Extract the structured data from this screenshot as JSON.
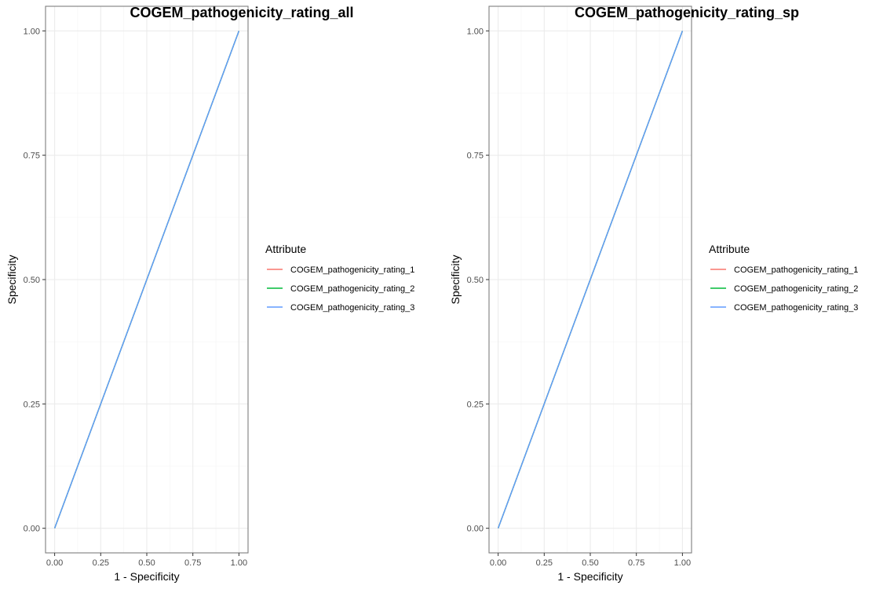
{
  "colors": {
    "series_1": "#F8766D",
    "series_2": "#00BA38",
    "series_3": "#619CFF",
    "grid_major": "#ebebeb",
    "grid_minor": "#f4f4f4",
    "panel_border": "#7f7f7f",
    "tick": "#333333"
  },
  "chart_data": [
    {
      "type": "line",
      "title": "COGEM_pathogenicity_rating_all",
      "xlabel": "1 - Specificity",
      "ylabel": "Specificity",
      "xlim": [
        0,
        1
      ],
      "ylim": [
        0,
        1
      ],
      "xticks": [
        "0.00",
        "0.25",
        "0.50",
        "0.75",
        "1.00"
      ],
      "yticks": [
        "0.00",
        "0.25",
        "0.50",
        "0.75",
        "1.00"
      ],
      "grid": true,
      "legend_title": "Attribute",
      "legend_position": "right",
      "series": [
        {
          "name": "COGEM_pathogenicity_rating_1",
          "x": [
            0,
            1
          ],
          "y": [
            0,
            1
          ]
        },
        {
          "name": "COGEM_pathogenicity_rating_2",
          "x": [
            0,
            1
          ],
          "y": [
            0,
            1
          ]
        },
        {
          "name": "COGEM_pathogenicity_rating_3",
          "x": [
            0,
            1
          ],
          "y": [
            0,
            1
          ]
        }
      ]
    },
    {
      "type": "line",
      "title": "COGEM_pathogenicity_rating_sp",
      "xlabel": "1 - Specificity",
      "ylabel": "Specificity",
      "xlim": [
        0,
        1
      ],
      "ylim": [
        0,
        1
      ],
      "xticks": [
        "0.00",
        "0.25",
        "0.50",
        "0.75",
        "1.00"
      ],
      "yticks": [
        "0.00",
        "0.25",
        "0.50",
        "0.75",
        "1.00"
      ],
      "grid": true,
      "legend_title": "Attribute",
      "legend_position": "right",
      "series": [
        {
          "name": "COGEM_pathogenicity_rating_1",
          "x": [
            0,
            1
          ],
          "y": [
            0,
            1
          ]
        },
        {
          "name": "COGEM_pathogenicity_rating_2",
          "x": [
            0,
            1
          ],
          "y": [
            0,
            1
          ]
        },
        {
          "name": "COGEM_pathogenicity_rating_3",
          "x": [
            0,
            1
          ],
          "y": [
            0,
            1
          ]
        }
      ]
    }
  ]
}
